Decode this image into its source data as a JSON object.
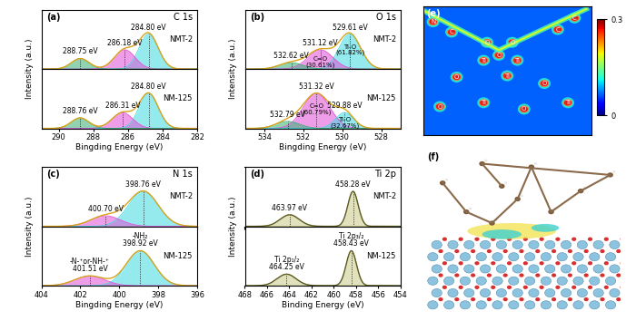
{
  "chart_data": [
    {
      "type": "line",
      "panel": "(a)",
      "title": "C 1s",
      "x_label": "Bingding Energy (eV)",
      "y_label": "Intensity (a.u.)",
      "xlim": [
        291,
        282
      ],
      "xticks": [
        290,
        288,
        286,
        284,
        282
      ],
      "ylim": [
        0,
        1.7
      ],
      "tick_labels": "x",
      "color": "#d9a21b",
      "series": [
        {
          "name": "NMT-2",
          "peaks": [
            {
              "center": 284.8,
              "height": 1.0,
              "fwhm": 1.3,
              "color": "#3fd9e0",
              "label": "284.80 eV"
            },
            {
              "center": 286.18,
              "height": 0.55,
              "fwhm": 1.4,
              "color": "#e04fd6",
              "label": "286.18 eV"
            },
            {
              "center": 288.75,
              "height": 0.3,
              "fwhm": 1.2,
              "color": "#34b072",
              "label": "288.75 eV"
            }
          ]
        },
        {
          "name": "NM-125",
          "peaks": [
            {
              "center": 284.8,
              "height": 1.0,
              "fwhm": 1.3,
              "color": "#3fd9e0",
              "label": "284.80 eV"
            },
            {
              "center": 286.31,
              "height": 0.45,
              "fwhm": 1.4,
              "color": "#e04fd6",
              "label": "286.31 eV"
            },
            {
              "center": 288.76,
              "height": 0.3,
              "fwhm": 1.2,
              "color": "#34b072",
              "label": "288.76 eV"
            }
          ]
        }
      ]
    },
    {
      "type": "line",
      "panel": "(b)",
      "title": "O 1s",
      "x_label": "Bingding Energy (eV)",
      "y_label": "Intensity (a.u.)",
      "xlim": [
        535,
        527
      ],
      "xticks": [
        534,
        532,
        530,
        528
      ],
      "ylim": [
        0,
        1.7
      ],
      "tick_labels": "x",
      "color": "#d9a21b",
      "series": [
        {
          "name": "NMT-2",
          "peaks": [
            {
              "center": 529.61,
              "height": 1.0,
              "fwhm": 1.3,
              "color": "#3fd9e0",
              "label": "529.61 eV",
              "inner_label": "Ti-O\n(61.82%)"
            },
            {
              "center": 531.12,
              "height": 0.55,
              "fwhm": 1.5,
              "color": "#e04fd6",
              "label": "531.12 eV",
              "inner_label": "C=O\n(30.61%)"
            },
            {
              "center": 532.62,
              "height": 0.18,
              "fwhm": 1.4,
              "color": "#34b072",
              "label": "532.62 eV"
            }
          ]
        },
        {
          "name": "NM-125",
          "peaks": [
            {
              "center": 531.32,
              "height": 1.0,
              "fwhm": 1.6,
              "color": "#e04fd6",
              "label": "531.32 eV",
              "inner_label": "C=O\n(60.79%)"
            },
            {
              "center": 529.88,
              "height": 0.45,
              "fwhm": 1.1,
              "color": "#3fd9e0",
              "label": "529.88 eV",
              "inner_label": "Ti-O\n(32.67%)"
            },
            {
              "center": 532.79,
              "height": 0.2,
              "fwhm": 1.4,
              "color": "#34b072",
              "label": "532.79 eV"
            }
          ]
        }
      ]
    },
    {
      "type": "line",
      "panel": "(c)",
      "title": "N 1s",
      "x_label": "Bingding Energy (eV)",
      "y_label": "Intensity (a.u.)",
      "xlim": [
        404,
        396
      ],
      "xticks": [
        404,
        402,
        400,
        398,
        396
      ],
      "ylim": [
        0,
        1.7
      ],
      "tick_labels": "x",
      "color": "#d9a21b",
      "series": [
        {
          "name": "NMT-2",
          "peaks": [
            {
              "center": 398.76,
              "height": 1.0,
              "fwhm": 1.8,
              "color": "#3fd9e0",
              "label": "398.76 eV"
            },
            {
              "center": 400.7,
              "height": 0.3,
              "fwhm": 1.8,
              "color": "#e04fd6",
              "label": "400.70 eV"
            }
          ]
        },
        {
          "name": "NM-125",
          "peaks": [
            {
              "center": 398.92,
              "height": 1.0,
              "fwhm": 1.7,
              "color": "#3fd9e0",
              "label": "398.92 eV",
              "name": "-NH₂"
            },
            {
              "center": 401.51,
              "height": 0.28,
              "fwhm": 1.8,
              "color": "#e04fd6",
              "label": "401.51 eV",
              "name": "-N-⁺or-NH-⁺"
            }
          ]
        }
      ]
    },
    {
      "type": "line",
      "panel": "(d)",
      "title": "Ti 2p",
      "x_label": "Binding Energy (eV)",
      "y_label": "Intensity (a.u.)",
      "xlim": [
        468,
        454
      ],
      "xticks": [
        468,
        466,
        464,
        462,
        460,
        458,
        456,
        454
      ],
      "ylim": [
        0,
        1.7
      ],
      "tick_labels": "x",
      "color": "#5c5c22",
      "series": [
        {
          "name": "NMT-2",
          "peaks": [
            {
              "center": 458.28,
              "height": 1.0,
              "fwhm": 1.1,
              "color": "#c9c98a",
              "label": "458.28 eV"
            },
            {
              "center": 463.97,
              "height": 0.33,
              "fwhm": 2.0,
              "color": "#c9c98a",
              "label": "463.97 eV"
            }
          ]
        },
        {
          "name": "NM-125",
          "peaks": [
            {
              "center": 458.43,
              "height": 1.0,
              "fwhm": 1.1,
              "color": "#c9c98a",
              "label": "458.43 eV",
              "name": "Ti 2p₃/₂"
            },
            {
              "center": 464.25,
              "height": 0.33,
              "fwhm": 2.0,
              "color": "#c9c98a",
              "label": "464.25 eV",
              "name": "Ti 2p₁/₂"
            }
          ]
        }
      ]
    }
  ],
  "images": [
    {
      "label": "(e)",
      "atoms": [
        "N",
        "C",
        "O",
        "O",
        "C",
        "C",
        "Ti",
        "O",
        "Ti",
        "O",
        "Ti",
        "O",
        "O",
        "Ti",
        "O",
        "Ti"
      ],
      "colorbar": {
        "range": [
          0,
          0.3
        ],
        "ticks": [
          0,
          0.3
        ]
      }
    },
    {
      "label": "(f)"
    }
  ]
}
